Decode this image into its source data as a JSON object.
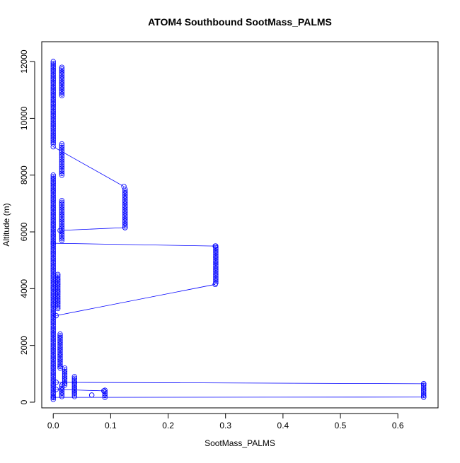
{
  "chart_data": {
    "type": "scatter",
    "title": "ATOM4 Southbound SootMass_PALMS",
    "xlabel": "SootMass_PALMS",
    "ylabel": "Altitude (m)",
    "xlim": [
      -0.02,
      0.67
    ],
    "ylim": [
      -200,
      12700
    ],
    "x_ticks": [
      0,
      0.1,
      0.2,
      0.3,
      0.4,
      0.5,
      0.6
    ],
    "x_tick_labels": [
      "0.0",
      "0.1",
      "0.2",
      "0.3",
      "0.4",
      "0.5",
      "0.6"
    ],
    "y_ticks": [
      0,
      2000,
      4000,
      6000,
      8000,
      10000,
      12000
    ],
    "y_tick_labels": [
      "0",
      "2000",
      "4000",
      "6000",
      "8000",
      "10000",
      "12000"
    ],
    "grid": false,
    "legend": "none",
    "series": [
      {
        "color": "#0000ff",
        "marker": "open-circle",
        "connected": true,
        "segments": [
          {
            "x": [
              0.0,
              0.0
            ],
            "y": [
              12000,
              9100
            ]
          },
          {
            "x": [
              0.015,
              0.015
            ],
            "y": [
              11800,
              10800
            ]
          },
          {
            "x": [
              0.0,
              0.123
            ],
            "y": [
              9000,
              7600
            ]
          },
          {
            "x": [
              0.015,
              0.015
            ],
            "y": [
              9100,
              8000
            ]
          },
          {
            "x": [
              0.125,
              0.125
            ],
            "y": [
              7500,
              6150
            ]
          },
          {
            "x": [
              0.125,
              0.012
            ],
            "y": [
              6150,
              6050
            ]
          },
          {
            "x": [
              0.015,
              0.015
            ],
            "y": [
              7100,
              5700
            ]
          },
          {
            "x": [
              0.0,
              0.282
            ],
            "y": [
              5600,
              5500
            ]
          },
          {
            "x": [
              0.283,
              0.283
            ],
            "y": [
              5500,
              4200
            ]
          },
          {
            "x": [
              0.282,
              0.005
            ],
            "y": [
              4150,
              3050
            ]
          },
          {
            "x": [
              0.008,
              0.008
            ],
            "y": [
              4500,
              3300
            ]
          },
          {
            "x": [
              0.012,
              0.012
            ],
            "y": [
              2400,
              1200
            ]
          },
          {
            "x": [
              0.02,
              0.02
            ],
            "y": [
              1200,
              600
            ]
          },
          {
            "x": [
              0.037,
              0.037
            ],
            "y": [
              900,
              200
            ]
          },
          {
            "x": [
              0.005,
              0.645
            ],
            "y": [
              700,
              650
            ]
          },
          {
            "x": [
              0.645,
              0.645
            ],
            "y": [
              650,
              180
            ]
          },
          {
            "x": [
              0.645,
              0.0
            ],
            "y": [
              180,
              170
            ]
          },
          {
            "x": [
              0.09,
              0.09
            ],
            "y": [
              420,
              170
            ]
          },
          {
            "x": [
              0.088,
              0.005
            ],
            "y": [
              400,
              450
            ]
          },
          {
            "x": [
              0.067,
              0.067
            ],
            "y": [
              250,
              250
            ]
          },
          {
            "x": [
              0.015,
              0.015
            ],
            "y": [
              600,
              200
            ]
          },
          {
            "x": [
              0.0,
              0.0
            ],
            "y": [
              8000,
              100
            ]
          }
        ]
      }
    ]
  }
}
